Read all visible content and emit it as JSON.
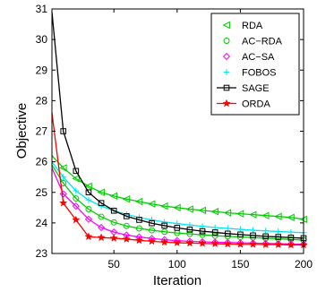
{
  "chart_data": {
    "type": "line",
    "xlabel": "Iteration",
    "ylabel": "Objective",
    "xlim": [
      1,
      200
    ],
    "ylim": [
      23,
      31
    ],
    "xticks": [
      50,
      100,
      150,
      200
    ],
    "yticks": [
      23,
      24,
      25,
      26,
      27,
      28,
      29,
      30,
      31
    ],
    "grid": false,
    "legend_position": "top-right",
    "x": [
      1,
      10,
      20,
      30,
      40,
      50,
      60,
      70,
      80,
      90,
      100,
      110,
      120,
      130,
      140,
      150,
      160,
      170,
      180,
      190,
      200
    ],
    "series": [
      {
        "name": "RDA",
        "color": "#00cc00",
        "marker": "triangle-left",
        "values": [
          26.2,
          25.8,
          25.45,
          25.2,
          25.0,
          24.88,
          24.78,
          24.7,
          24.62,
          24.55,
          24.5,
          24.45,
          24.41,
          24.37,
          24.33,
          24.3,
          24.27,
          24.24,
          24.21,
          24.18,
          24.12
        ]
      },
      {
        "name": "AC−RDA",
        "color": "#00cc00",
        "marker": "circle",
        "values": [
          25.9,
          25.3,
          24.8,
          24.45,
          24.2,
          24.02,
          23.9,
          23.82,
          23.76,
          23.71,
          23.67,
          23.64,
          23.61,
          23.58,
          23.56,
          23.54,
          23.52,
          23.5,
          23.48,
          23.46,
          23.44
        ]
      },
      {
        "name": "AC−SA",
        "color": "#ff00ff",
        "marker": "diamond",
        "values": [
          25.8,
          24.95,
          24.55,
          24.12,
          23.85,
          23.7,
          23.6,
          23.54,
          23.49,
          23.45,
          23.42,
          23.4,
          23.38,
          23.37,
          23.36,
          23.35,
          23.34,
          23.33,
          23.32,
          23.31,
          23.3
        ]
      },
      {
        "name": "FOBOS",
        "color": "#00e5ee",
        "marker": "plus",
        "values": [
          26.0,
          25.5,
          25.05,
          24.75,
          24.55,
          24.4,
          24.28,
          24.18,
          24.1,
          24.03,
          23.98,
          23.93,
          23.89,
          23.85,
          23.82,
          23.79,
          23.76,
          23.74,
          23.72,
          23.7,
          23.68
        ]
      },
      {
        "name": "SAGE",
        "color": "#000000",
        "marker": "square",
        "values": [
          30.9,
          27.0,
          25.7,
          25.0,
          24.65,
          24.4,
          24.22,
          24.1,
          23.99,
          23.91,
          23.84,
          23.78,
          23.73,
          23.69,
          23.65,
          23.62,
          23.59,
          23.56,
          23.54,
          23.52,
          23.5
        ]
      },
      {
        "name": "ORDA",
        "color": "#ff0000",
        "marker": "star",
        "values": [
          27.6,
          24.65,
          24.1,
          23.55,
          23.52,
          23.5,
          23.47,
          23.43,
          23.4,
          23.37,
          23.35,
          23.34,
          23.33,
          23.32,
          23.31,
          23.3,
          23.3,
          23.29,
          23.29,
          23.28,
          23.28
        ]
      }
    ]
  }
}
